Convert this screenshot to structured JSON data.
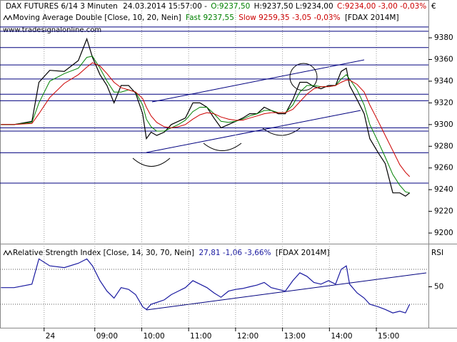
{
  "chart_data": [
    {
      "type": "line",
      "title_parts": [
        {
          "text": "DAX FUTURES 6/14 3 Minuten",
          "color": "#000000"
        },
        {
          "text": "24.03.2014 15:57:00 -",
          "color": "#000000"
        },
        {
          "text": "O:9237,50",
          "color": "#008000"
        },
        {
          "text": "H:9237,50 L:9234,00",
          "color": "#000000"
        },
        {
          "text": "C:9234,00 -3,00 -0,03%",
          "color": "#cc0000"
        }
      ],
      "indicator_title": "Moving Average Double [Close, 10, 20, Nein]",
      "instrument": "[FDAX 2014M]",
      "watermark": "www.tradesignalonline.com",
      "currency": "€",
      "x": [
        7.0,
        7.28,
        7.66,
        7.81,
        8.04,
        8.35,
        8.65,
        8.83,
        8.95,
        9.11,
        9.26,
        9.41,
        9.56,
        9.72,
        9.87,
        10.02,
        10.1,
        10.2,
        10.32,
        10.48,
        10.63,
        10.78,
        10.93,
        11.09,
        11.24,
        11.39,
        11.54,
        11.69,
        11.85,
        12.0,
        12.15,
        12.3,
        12.46,
        12.61,
        12.76,
        12.91,
        13.06,
        13.22,
        13.37,
        13.52,
        13.67,
        13.82,
        13.98,
        14.13,
        14.25,
        14.36,
        14.43,
        14.59,
        14.74,
        14.86,
        15.04,
        15.19,
        15.35,
        15.5,
        15.62,
        15.71
      ],
      "series": [
        {
          "name": "DAX FUTURES 6/14 3 Minuten",
          "color": "#000000",
          "values": [
            9300,
            9300,
            9303,
            9339,
            9350,
            9349,
            9359,
            9379,
            9362,
            9346,
            9336,
            9320,
            9336,
            9336,
            9329,
            9310,
            9287,
            9293,
            9290,
            9293,
            9300,
            9303,
            9306,
            9320,
            9320,
            9316,
            9306,
            9297,
            9300,
            9303,
            9306,
            9310,
            9310,
            9316,
            9313,
            9310,
            9310,
            9323,
            9339,
            9339,
            9335,
            9333,
            9336,
            9336,
            9349,
            9352,
            9336,
            9323,
            9310,
            9287,
            9274,
            9264,
            9237,
            9237,
            9234,
            9237
          ]
        },
        {
          "name": "Fast 9237,55",
          "color": "#008000",
          "values": [
            9300,
            9300,
            9302,
            9320,
            9340,
            9347,
            9352,
            9362,
            9363,
            9352,
            9340,
            9330,
            9330,
            9332,
            9330,
            9318,
            9305,
            9298,
            9294,
            9294,
            9297,
            9300,
            9304,
            9312,
            9316,
            9316,
            9310,
            9303,
            9302,
            9303,
            9305,
            9308,
            9310,
            9313,
            9313,
            9311,
            9311,
            9318,
            9330,
            9336,
            9336,
            9335,
            9335,
            9336,
            9342,
            9346,
            9342,
            9332,
            9318,
            9300,
            9284,
            9270,
            9254,
            9244,
            9238,
            9237
          ]
        },
        {
          "name": "Slow 9259,35 -3,05 -0,03%",
          "color": "#cc0000",
          "values": [
            9300,
            9300,
            9301,
            9310,
            9325,
            9338,
            9346,
            9353,
            9357,
            9354,
            9347,
            9339,
            9334,
            9332,
            9330,
            9324,
            9316,
            9308,
            9302,
            9298,
            9297,
            9298,
            9300,
            9305,
            9309,
            9311,
            9310,
            9307,
            9305,
            9304,
            9304,
            9306,
            9308,
            9310,
            9311,
            9311,
            9311,
            9314,
            9321,
            9328,
            9333,
            9335,
            9335,
            9336,
            9339,
            9341,
            9341,
            9337,
            9330,
            9318,
            9303,
            9290,
            9276,
            9263,
            9256,
            9252
          ]
        }
      ],
      "levels": [
        9390,
        9386,
        9371,
        9355,
        9342,
        9328,
        9322,
        9297,
        9294,
        9274,
        9246
      ],
      "level_color": "#00007f",
      "xlim": [
        6.98,
        16.11
      ],
      "ylim": [
        9191.5,
        9405
      ],
      "yticks": [
        9380,
        9360,
        9340,
        9320,
        9300,
        9280,
        9260,
        9240,
        9220,
        9200
      ]
    },
    {
      "type": "line",
      "title": "Relative Strength Index [Close, 14, 30, 70, Nein]",
      "instrument": "[FDAX 2014M]",
      "axis_label": "RSI",
      "x": [
        7.0,
        7.28,
        7.66,
        7.81,
        8.04,
        8.35,
        8.65,
        8.83,
        8.95,
        9.11,
        9.26,
        9.41,
        9.56,
        9.72,
        9.87,
        10.02,
        10.1,
        10.2,
        10.32,
        10.48,
        10.63,
        10.78,
        10.93,
        11.09,
        11.24,
        11.39,
        11.54,
        11.69,
        11.85,
        12.0,
        12.15,
        12.3,
        12.46,
        12.61,
        12.76,
        12.91,
        13.06,
        13.22,
        13.37,
        13.52,
        13.67,
        13.82,
        13.98,
        14.13,
        14.25,
        14.36,
        14.43,
        14.59,
        14.74,
        14.86,
        15.04,
        15.19,
        15.35,
        15.5,
        15.62,
        15.71
      ],
      "series": [
        {
          "name": "27,81 -1,06 -3,66%",
          "color": "#1a1aa0",
          "values": [
            49,
            49,
            53,
            82,
            74,
            72,
            77,
            82,
            74,
            57,
            45,
            37,
            49,
            47,
            41,
            27,
            24,
            30,
            32,
            35,
            41,
            45,
            49,
            57,
            53,
            49,
            43,
            38,
            45,
            47,
            48,
            50,
            52,
            55,
            49,
            47,
            45,
            57,
            66,
            62,
            55,
            53,
            57,
            53,
            70,
            74,
            53,
            43,
            37,
            30,
            27,
            24,
            20,
            22,
            20,
            30
          ]
        }
      ],
      "levels": [
        30,
        70
      ],
      "xlim": [
        6.98,
        16.11
      ],
      "ylim": [
        3,
        97
      ],
      "yticks": [
        50
      ],
      "xticks": [
        {
          "value": 7.92,
          "label": "24"
        },
        {
          "value": 9,
          "label": "09:00"
        },
        {
          "value": 10,
          "label": "10:00"
        },
        {
          "value": 11,
          "label": "11:00"
        },
        {
          "value": 12,
          "label": "12:00"
        },
        {
          "value": 13,
          "label": "13:00"
        },
        {
          "value": 14,
          "label": "14:00"
        },
        {
          "value": 15,
          "label": "15:00"
        }
      ]
    }
  ]
}
